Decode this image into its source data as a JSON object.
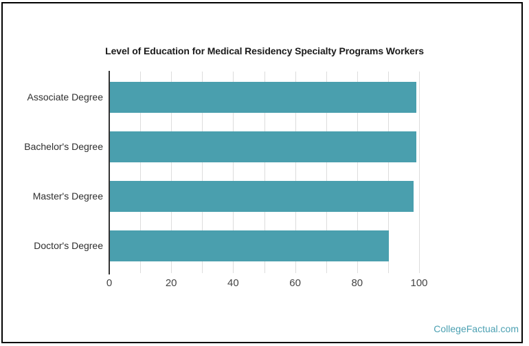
{
  "watermark": "CollegeFactual.com",
  "chart_data": {
    "type": "bar",
    "orientation": "horizontal",
    "title": "Level of Education for Medical Residency Specialty Programs Workers",
    "categories": [
      "Associate Degree",
      "Bachelor's Degree",
      "Master's Degree",
      "Doctor's Degree"
    ],
    "values": [
      99,
      99,
      98,
      90
    ],
    "xlabel": "",
    "ylabel": "",
    "xlim": [
      0,
      100
    ],
    "xticks": [
      0,
      20,
      40,
      60,
      80,
      100
    ],
    "gridline_step": 10,
    "grid": true,
    "legend": "none",
    "bar_color": "#4a9fae",
    "axis_color": "#333333",
    "gridline_color": "#dcdcdc",
    "tick_label_color": "#444444",
    "category_label_color": "#2e2e2e",
    "title_color": "#1a1a1a",
    "watermark_color": "#4ba0b2"
  }
}
